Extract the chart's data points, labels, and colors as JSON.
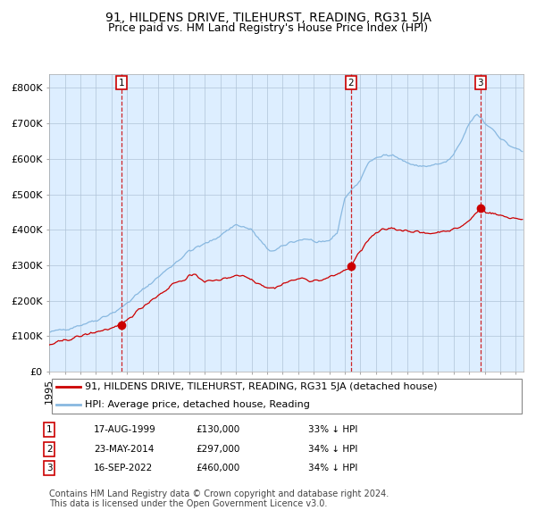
{
  "title": "91, HILDENS DRIVE, TILEHURST, READING, RG31 5JA",
  "subtitle": "Price paid vs. HM Land Registry's House Price Index (HPI)",
  "ylim": [
    0,
    840000
  ],
  "xlim_start": 1995.0,
  "xlim_end": 2025.5,
  "yticks": [
    0,
    100000,
    200000,
    300000,
    400000,
    500000,
    600000,
    700000,
    800000
  ],
  "ytick_labels": [
    "£0",
    "£100K",
    "£200K",
    "£300K",
    "£400K",
    "£500K",
    "£600K",
    "£700K",
    "£800K"
  ],
  "hpi_color": "#88b8e0",
  "price_color": "#cc0000",
  "bg_color": "#ddeeff",
  "purchase_dates": [
    1999.625,
    2014.388,
    2022.708
  ],
  "purchase_prices": [
    130000,
    297000,
    460000
  ],
  "legend_price_label": "91, HILDENS DRIVE, TILEHURST, READING, RG31 5JA (detached house)",
  "legend_hpi_label": "HPI: Average price, detached house, Reading",
  "table_data": [
    [
      "1",
      "17-AUG-1999",
      "£130,000",
      "33% ↓ HPI"
    ],
    [
      "2",
      "23-MAY-2014",
      "£297,000",
      "34% ↓ HPI"
    ],
    [
      "3",
      "16-SEP-2022",
      "£460,000",
      "34% ↓ HPI"
    ]
  ],
  "footer": "Contains HM Land Registry data © Crown copyright and database right 2024.\nThis data is licensed under the Open Government Licence v3.0.",
  "title_fontsize": 10,
  "subtitle_fontsize": 9,
  "tick_fontsize": 8,
  "legend_fontsize": 8
}
